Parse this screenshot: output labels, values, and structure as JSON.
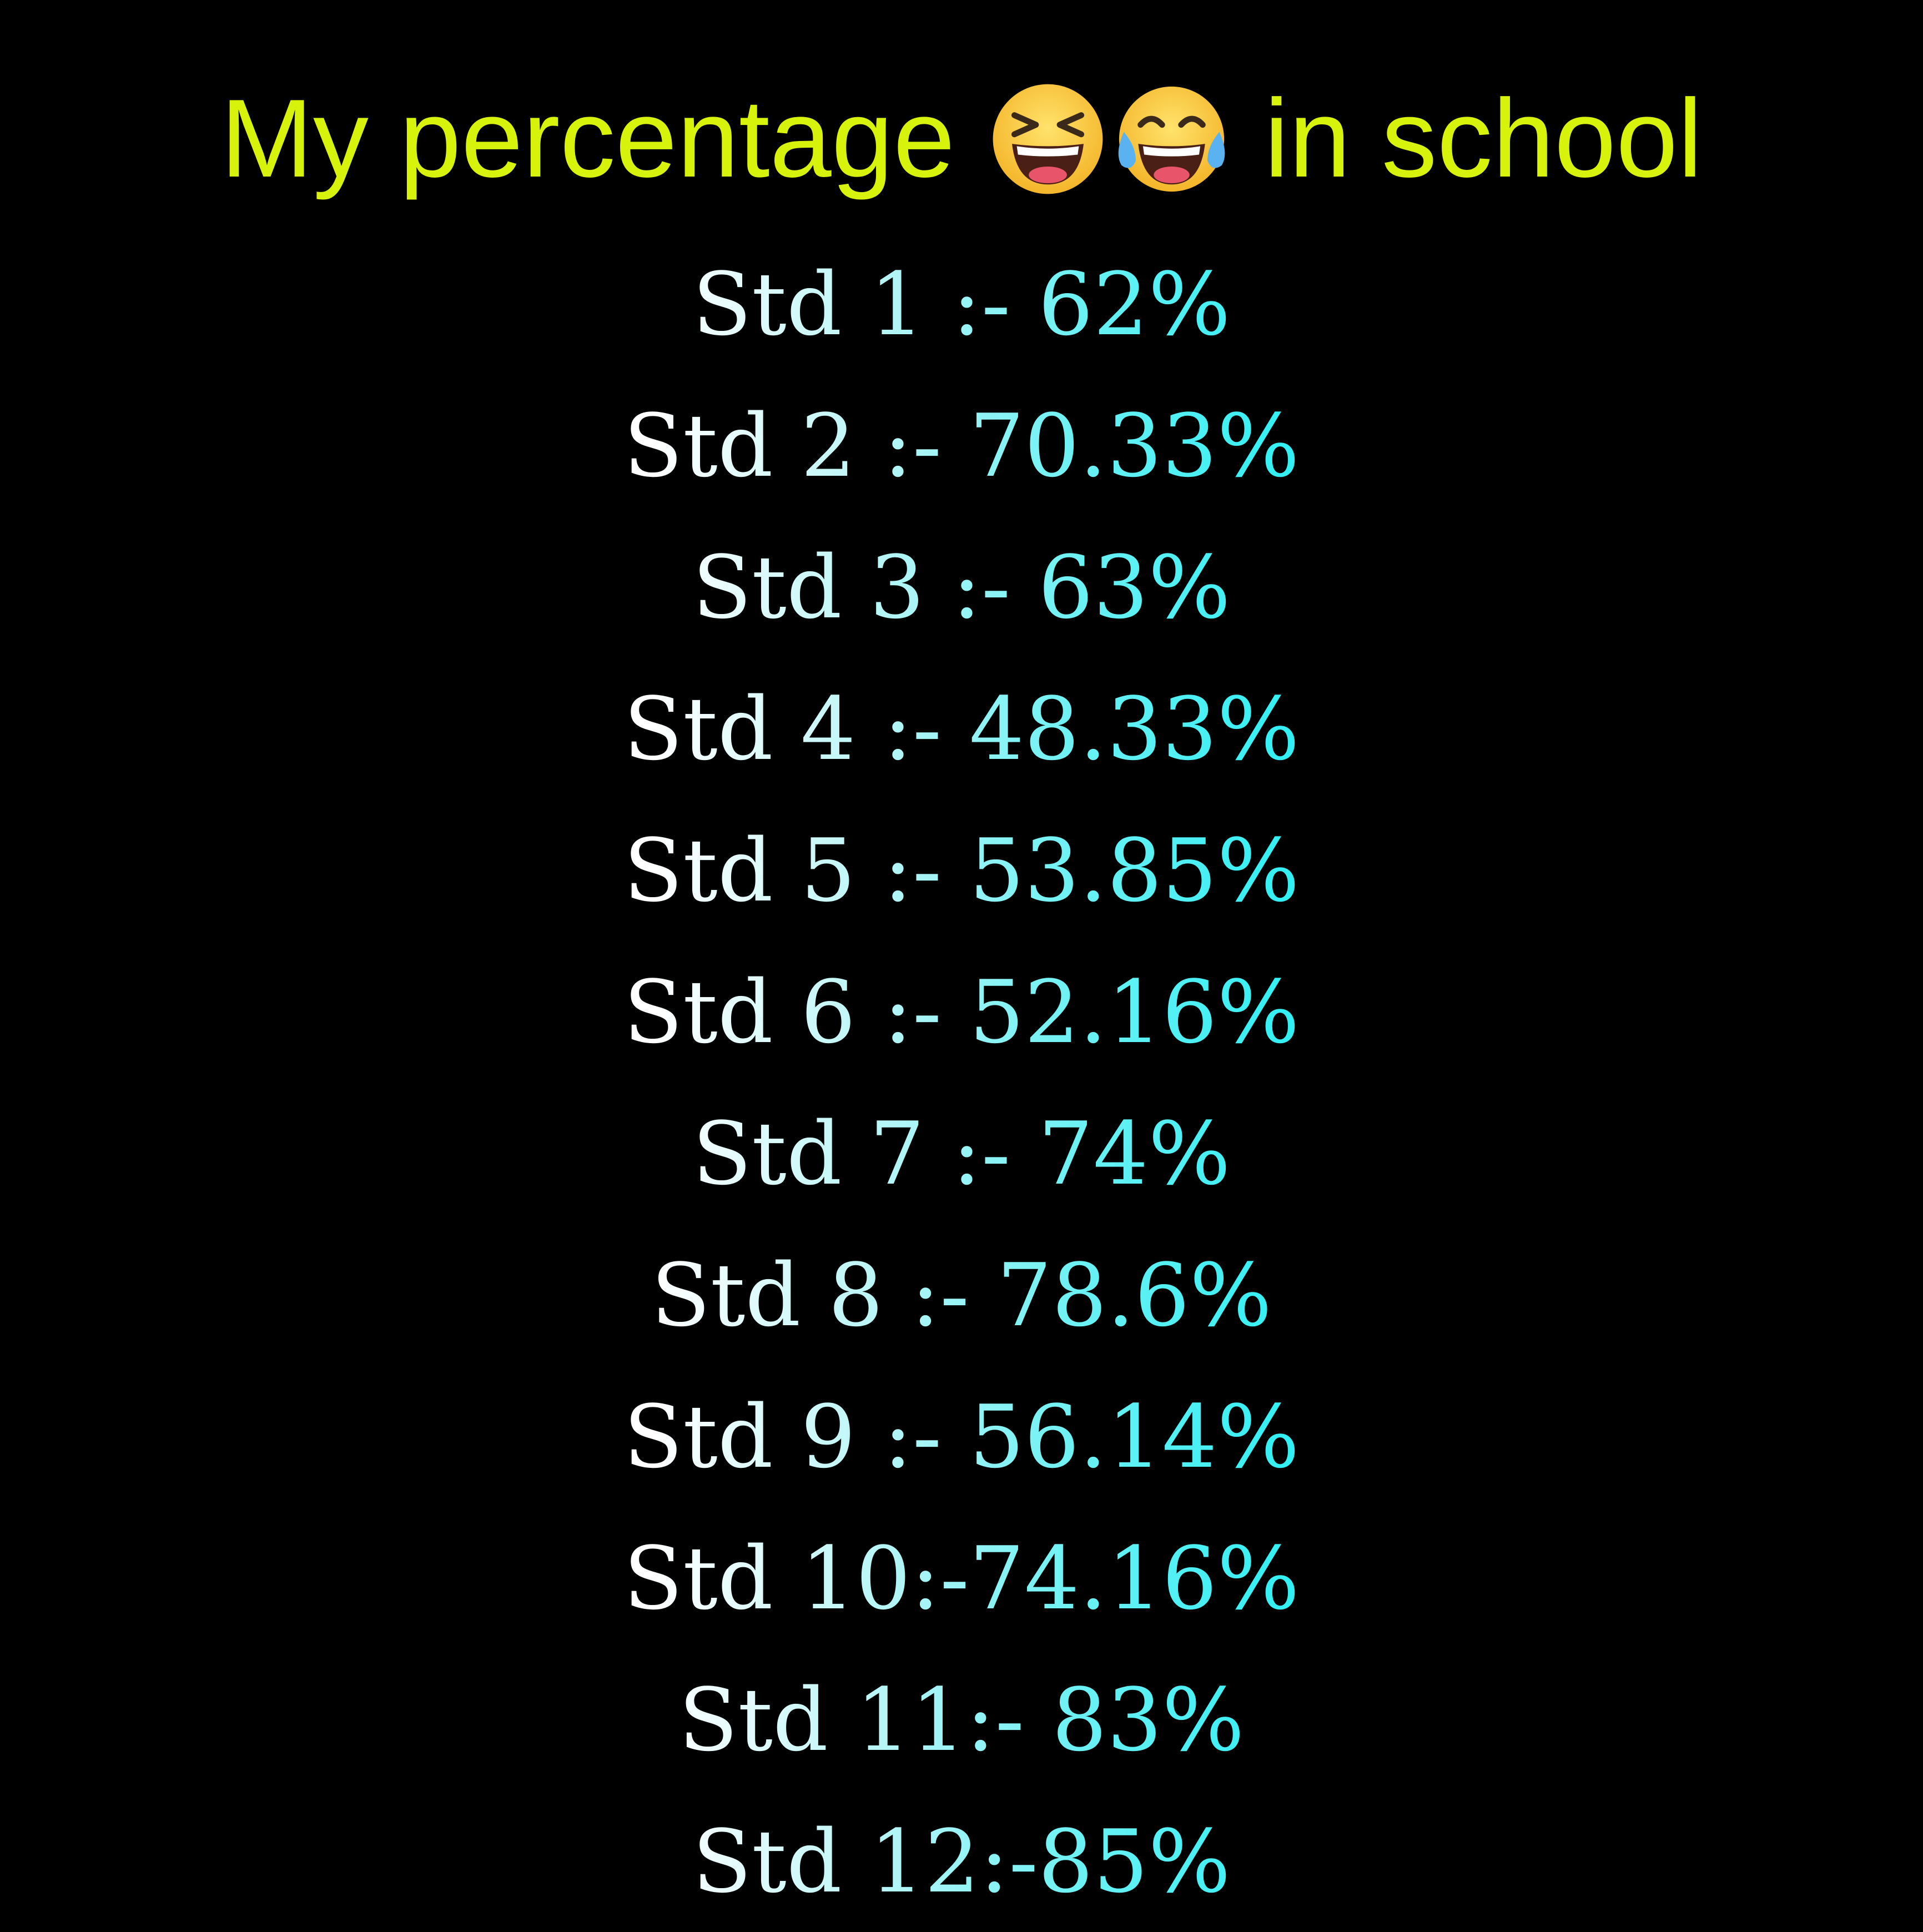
{
  "title": {
    "prefix": "My percentage",
    "suffix": "in school",
    "emojis": [
      "laughing-face-icon",
      "tears-of-joy-face-icon"
    ],
    "color": "#d7f20b"
  },
  "rows": [
    "Std 1 :- 62%",
    "Std 2 :- 70.33%",
    "Std 3 :- 63%",
    "Std 4 :- 48.33%",
    "Std 5 :- 53.85%",
    "Std 6 :- 52.16%",
    "Std 7 :- 74%",
    "Std 8 :- 78.6%",
    "Std 9 :- 56.14%",
    "Std 10:-74.16%",
    "Std 11:- 83%",
    "Std 12:-85%"
  ],
  "colors": {
    "background": "#000000",
    "text_start": "#ffffff",
    "text_end": "#24eef2"
  }
}
